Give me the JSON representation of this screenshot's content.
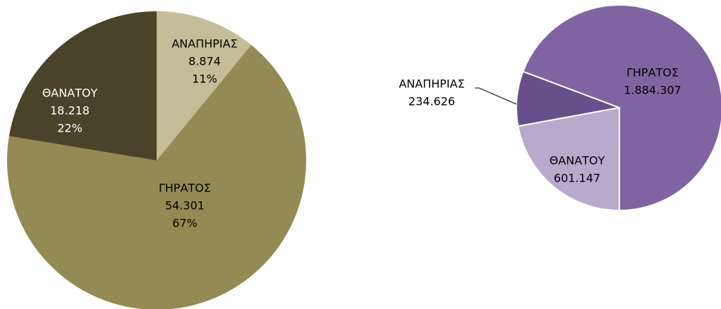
{
  "chart_data": [
    {
      "type": "pie",
      "categories": [
        "ΑΝΑΠΗΡΙΑΣ",
        "ΓΗΡΑΤΟΣ",
        "ΘΑΝΑΤΟΥ"
      ],
      "values": [
        8874,
        54301,
        18218
      ],
      "value_labels": [
        "8.874",
        "54.301",
        "18.218"
      ],
      "percent_labels": [
        "11%",
        "67%",
        "22%"
      ],
      "colors": [
        "#c4bd97",
        "#948a54",
        "#4a4229"
      ]
    },
    {
      "type": "pie",
      "categories": [
        "ΑΝΑΠΗΡΙΑΣ",
        "ΓΗΡΑΤΟΣ",
        "ΘΑΝΑΤΟΥ"
      ],
      "values": [
        234626,
        1884307,
        601147
      ],
      "value_labels": [
        "234.626",
        "1.884.307",
        "601.147"
      ],
      "colors": [
        "#67508a",
        "#8064a2",
        "#b9a9cc"
      ]
    }
  ]
}
